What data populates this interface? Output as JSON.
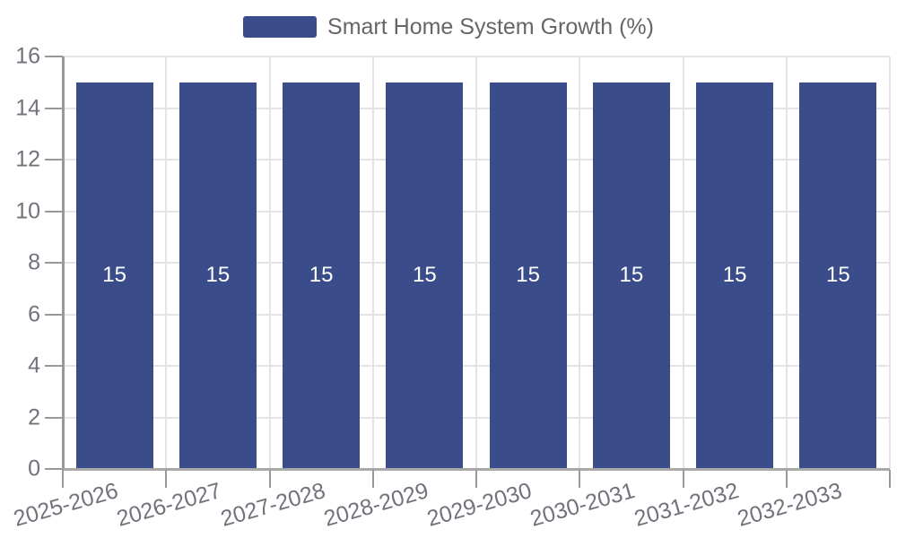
{
  "legend": {
    "items": [
      {
        "label": "Smart Home System Growth (%)",
        "swatch_color": "#3a4d8a"
      }
    ]
  },
  "chart_data": {
    "type": "bar",
    "title": "Smart Home System Growth (%)",
    "categories": [
      "2025-2026",
      "2026-2027",
      "2027-2028",
      "2028-2029",
      "2029-2030",
      "2030-2031",
      "2031-2032",
      "2032-2033"
    ],
    "values": [
      15,
      15,
      15,
      15,
      15,
      15,
      15,
      15
    ],
    "value_labels": [
      "15",
      "15",
      "15",
      "15",
      "15",
      "15",
      "15",
      "15"
    ],
    "xlabel": "",
    "ylabel": "",
    "ylim": [
      0,
      16
    ],
    "yticks": [
      0,
      2,
      4,
      6,
      8,
      10,
      12,
      14,
      16
    ],
    "grid": true,
    "legend_position": "top",
    "bar_color": "#3a4d8a",
    "value_label_color": "#ffffff",
    "axis_label_color": "#70737b",
    "grid_color": "#e4e4e4",
    "axis_line_color": "#a8a8a8",
    "tick_color": "#999999",
    "x_label_rotation_deg": -16
  }
}
